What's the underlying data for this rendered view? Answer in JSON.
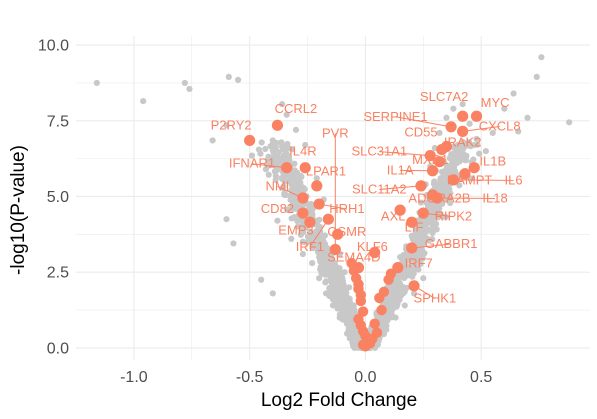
{
  "chart_data": {
    "type": "scatter",
    "title": "",
    "xlabel": "Log2 Fold Change",
    "ylabel": "-log10(P-value)",
    "xlim": [
      -1.25,
      0.97
    ],
    "ylim": [
      -0.4,
      10.3
    ],
    "x_ticks": [
      -1.0,
      -0.5,
      0.0,
      0.5
    ],
    "x_tick_labels": [
      "-1.0",
      "-0.5",
      "0.0",
      "0.5"
    ],
    "y_ticks": [
      0.0,
      2.5,
      5.0,
      7.5,
      10.0
    ],
    "y_tick_labels": [
      "0.0",
      "2.5",
      "5.0",
      "7.5",
      "10.0"
    ],
    "grid": true,
    "legend": "none",
    "colors": {
      "background_gene": "#c8c8c8",
      "highlighted_gene": "#fa8161",
      "grid": "#ebebeb"
    },
    "background_points": [
      [
        -1.16,
        8.75
      ],
      [
        -0.96,
        8.15
      ],
      [
        -0.78,
        8.75
      ],
      [
        -0.76,
        8.55
      ],
      [
        -0.59,
        8.95
      ],
      [
        -0.55,
        8.85
      ],
      [
        -0.6,
        7.35
      ],
      [
        -0.66,
        6.85
      ],
      [
        -0.46,
        6.55
      ],
      [
        -0.6,
        4.25
      ],
      [
        -0.57,
        3.45
      ],
      [
        -0.49,
        6.35
      ],
      [
        -0.43,
        5.9
      ],
      [
        -0.4,
        6.85
      ],
      [
        -0.36,
        8.05
      ],
      [
        -0.34,
        7.7
      ],
      [
        -0.33,
        6.3
      ],
      [
        -0.31,
        5.8
      ],
      [
        -0.29,
        5.3
      ],
      [
        -0.28,
        4.7
      ],
      [
        -0.35,
        5.1
      ],
      [
        -0.25,
        4.4
      ],
      [
        -0.24,
        3.8
      ],
      [
        -0.22,
        3.4
      ],
      [
        -0.2,
        3.0
      ],
      [
        -0.19,
        2.6
      ],
      [
        -0.17,
        2.2
      ],
      [
        -0.15,
        1.9
      ],
      [
        -0.14,
        1.6
      ],
      [
        -0.12,
        1.3
      ],
      [
        -0.1,
        1.0
      ],
      [
        -0.08,
        0.8
      ],
      [
        -0.06,
        0.55
      ],
      [
        -0.04,
        0.35
      ],
      [
        -0.02,
        0.15
      ],
      [
        -0.38,
        4.2
      ],
      [
        -0.32,
        3.6
      ],
      [
        -0.27,
        3.1
      ],
      [
        -0.45,
        2.25
      ],
      [
        -0.4,
        1.8
      ],
      [
        -0.3,
        7.2
      ],
      [
        -0.26,
        6.7
      ],
      [
        -0.21,
        5.6
      ],
      [
        -0.18,
        4.9
      ],
      [
        -0.16,
        4.3
      ],
      [
        -0.13,
        3.7
      ],
      [
        -0.11,
        3.1
      ],
      [
        -0.09,
        2.5
      ],
      [
        -0.07,
        2.0
      ],
      [
        -0.05,
        1.4
      ],
      [
        -0.23,
        2.8
      ],
      [
        -0.2,
        2.3
      ],
      [
        -0.17,
        1.8
      ],
      [
        -0.14,
        1.4
      ],
      [
        -0.11,
        1.1
      ],
      [
        0.02,
        0.2
      ],
      [
        0.04,
        0.4
      ],
      [
        0.06,
        0.7
      ],
      [
        0.08,
        1.0
      ],
      [
        0.1,
        1.4
      ],
      [
        0.12,
        1.8
      ],
      [
        0.14,
        2.2
      ],
      [
        0.16,
        2.7
      ],
      [
        0.18,
        3.2
      ],
      [
        0.2,
        3.7
      ],
      [
        0.22,
        4.2
      ],
      [
        0.24,
        4.8
      ],
      [
        0.26,
        5.4
      ],
      [
        0.28,
        6.0
      ],
      [
        0.3,
        6.6
      ],
      [
        0.32,
        7.1
      ],
      [
        0.35,
        7.6
      ],
      [
        0.38,
        7.9
      ],
      [
        0.42,
        8.05
      ],
      [
        0.45,
        7.4
      ],
      [
        0.48,
        6.9
      ],
      [
        0.52,
        6.5
      ],
      [
        0.55,
        7.1
      ],
      [
        0.6,
        7.9
      ],
      [
        0.64,
        8.4
      ],
      [
        0.7,
        7.6
      ],
      [
        0.76,
        9.6
      ],
      [
        0.74,
        8.95
      ],
      [
        0.88,
        7.45
      ],
      [
        0.66,
        7.15
      ],
      [
        0.15,
        3.0
      ],
      [
        0.19,
        2.6
      ],
      [
        0.23,
        3.3
      ],
      [
        0.27,
        3.9
      ],
      [
        0.31,
        4.6
      ],
      [
        0.34,
        5.2
      ],
      [
        0.37,
        5.8
      ],
      [
        0.4,
        6.4
      ],
      [
        0.43,
        6.2
      ],
      [
        0.46,
        5.6
      ],
      [
        0.25,
        2.3
      ],
      [
        0.21,
        1.8
      ],
      [
        0.17,
        1.4
      ],
      [
        0.13,
        1.0
      ],
      [
        0.09,
        0.6
      ]
    ],
    "highlighted_points": [
      {
        "label": "CCRL2",
        "x": -0.38,
        "y": 7.35
      },
      {
        "label": "P2RY2",
        "x": -0.5,
        "y": 6.85
      },
      {
        "label": "IFNAR1",
        "x": -0.34,
        "y": 5.95
      },
      {
        "label": "IL4R",
        "x": -0.26,
        "y": 5.95
      },
      {
        "label": "LPAR1",
        "x": -0.21,
        "y": 5.35
      },
      {
        "label": "NMI",
        "x": -0.27,
        "y": 4.95
      },
      {
        "label": "CD82",
        "x": -0.27,
        "y": 4.45
      },
      {
        "label": "HRH1",
        "x": -0.2,
        "y": 4.75
      },
      {
        "label": "EMP3",
        "x": -0.24,
        "y": 4.15
      },
      {
        "label": "IRF1",
        "x": -0.16,
        "y": 4.25
      },
      {
        "label": "OSMR",
        "x": -0.12,
        "y": 3.75
      },
      {
        "label": "PVR",
        "x": -0.13,
        "y": 3.25
      },
      {
        "label": "SEMA4D",
        "x": -0.03,
        "y": 2.65
      },
      {
        "label": "KLF6",
        "x": 0.04,
        "y": 3.15
      },
      {
        "label": "SLC7A2",
        "x": 0.42,
        "y": 7.65
      },
      {
        "label": "MYC",
        "x": 0.48,
        "y": 7.65
      },
      {
        "label": "SERPINE1",
        "x": 0.37,
        "y": 7.3
      },
      {
        "label": "CXCL8",
        "x": 0.42,
        "y": 7.15
      },
      {
        "label": "CD55",
        "x": 0.33,
        "y": 6.55
      },
      {
        "label": "IRAK2",
        "x": 0.35,
        "y": 6.65
      },
      {
        "label": "SLC31A1",
        "x": 0.28,
        "y": 6.35
      },
      {
        "label": "MXD1",
        "x": 0.32,
        "y": 6.15
      },
      {
        "label": "IL1B",
        "x": 0.47,
        "y": 5.95
      },
      {
        "label": "IL1A",
        "x": 0.29,
        "y": 5.85
      },
      {
        "label": "NAMPT",
        "x": 0.43,
        "y": 5.75
      },
      {
        "label": "IL6",
        "x": 0.38,
        "y": 5.55
      },
      {
        "label": "SLC11A2",
        "x": 0.24,
        "y": 5.35
      },
      {
        "label": "ADORA2B",
        "x": 0.29,
        "y": 5.05
      },
      {
        "label": "IL18",
        "x": 0.31,
        "y": 4.95
      },
      {
        "label": "AXL",
        "x": 0.15,
        "y": 4.55
      },
      {
        "label": "RIPK2",
        "x": 0.25,
        "y": 4.45
      },
      {
        "label": "LIF",
        "x": 0.2,
        "y": 4.15
      },
      {
        "label": "GABBR1",
        "x": 0.2,
        "y": 3.3
      },
      {
        "label": "IRF7",
        "x": 0.14,
        "y": 2.65
      },
      {
        "label": "SPHK1",
        "x": 0.21,
        "y": 2.05
      }
    ],
    "cluster_points": [
      [
        -0.05,
        2.55
      ],
      [
        -0.04,
        2.3
      ],
      [
        -0.03,
        2.1
      ],
      [
        -0.03,
        1.95
      ],
      [
        -0.02,
        1.75
      ],
      [
        -0.02,
        1.55
      ],
      [
        -0.01,
        1.2
      ],
      [
        -0.03,
        0.95
      ],
      [
        -0.02,
        0.75
      ],
      [
        -0.01,
        0.55
      ],
      [
        0.0,
        0.4
      ],
      [
        0.01,
        0.25
      ],
      [
        0.02,
        0.15
      ],
      [
        -0.01,
        0.1
      ],
      [
        0.0,
        0.05
      ],
      [
        0.03,
        0.3
      ],
      [
        0.05,
        0.5
      ],
      [
        0.07,
        1.25
      ],
      [
        0.1,
        2.25
      ],
      [
        0.11,
        2.45
      ],
      [
        0.08,
        1.85
      ],
      [
        0.06,
        1.65
      ],
      [
        -0.06,
        2.8
      ],
      [
        0.04,
        0.8
      ]
    ],
    "annotations": [
      {
        "label": "CCRL2",
        "ax": -0.3,
        "ay": 7.75,
        "anchor": "middle"
      },
      {
        "label": "P2RY2",
        "ax": -0.58,
        "ay": 7.22,
        "anchor": "middle"
      },
      {
        "label": "IFNAR1",
        "ax": -0.49,
        "ay": 5.95,
        "anchor": "middle"
      },
      {
        "label": "IL4R",
        "ax": -0.27,
        "ay": 6.35,
        "anchor": "middle"
      },
      {
        "label": "LPAR1",
        "ax": -0.17,
        "ay": 5.7,
        "anchor": "middle"
      },
      {
        "label": "NMI",
        "ax": -0.38,
        "ay": 5.2,
        "anchor": "middle"
      },
      {
        "label": "CD82",
        "ax": -0.38,
        "ay": 4.45,
        "anchor": "middle"
      },
      {
        "label": "HRH1",
        "ax": -0.08,
        "ay": 4.45,
        "anchor": "middle"
      },
      {
        "label": "EMP3",
        "ax": -0.3,
        "ay": 3.75,
        "anchor": "middle"
      },
      {
        "label": "IRF1",
        "ax": -0.24,
        "ay": 3.2,
        "anchor": "middle"
      },
      {
        "label": "OSMR",
        "ax": -0.08,
        "ay": 3.7,
        "anchor": "middle"
      },
      {
        "label": "PVR",
        "ax": -0.13,
        "ay": 6.95,
        "anchor": "middle"
      },
      {
        "label": "SEMA4D",
        "ax": -0.05,
        "ay": 2.85,
        "anchor": "middle"
      },
      {
        "label": "KLF6",
        "ax": 0.03,
        "ay": 3.2,
        "anchor": "middle"
      },
      {
        "label": "SLC7A2",
        "ax": 0.34,
        "ay": 8.15,
        "anchor": "middle"
      },
      {
        "label": "MYC",
        "ax": 0.56,
        "ay": 7.95,
        "anchor": "middle"
      },
      {
        "label": "SERPINE1",
        "ax": 0.13,
        "ay": 7.5,
        "anchor": "middle"
      },
      {
        "label": "CXCL8",
        "ax": 0.58,
        "ay": 7.18,
        "anchor": "middle"
      },
      {
        "label": "CD55",
        "ax": 0.24,
        "ay": 6.98,
        "anchor": "middle"
      },
      {
        "label": "IRAK2",
        "ax": 0.42,
        "ay": 6.65,
        "anchor": "middle"
      },
      {
        "label": "SLC31A1",
        "ax": 0.06,
        "ay": 6.35,
        "anchor": "middle"
      },
      {
        "label": "MXD1",
        "ax": 0.28,
        "ay": 6.08,
        "anchor": "middle"
      },
      {
        "label": "IL1B",
        "ax": 0.55,
        "ay": 6.03,
        "anchor": "middle"
      },
      {
        "label": "IL1A",
        "ax": 0.15,
        "ay": 5.73,
        "anchor": "middle"
      },
      {
        "label": "NAMPT",
        "ax": 0.45,
        "ay": 5.4,
        "anchor": "middle"
      },
      {
        "label": "IL6",
        "ax": 0.64,
        "ay": 5.4,
        "anchor": "middle"
      },
      {
        "label": "SLC11A2",
        "ax": 0.06,
        "ay": 5.1,
        "anchor": "middle"
      },
      {
        "label": "ADORA2B",
        "ax": 0.32,
        "ay": 4.8,
        "anchor": "middle"
      },
      {
        "label": "IL18",
        "ax": 0.56,
        "ay": 4.8,
        "anchor": "middle"
      },
      {
        "label": "AXL",
        "ax": 0.12,
        "ay": 4.2,
        "anchor": "middle"
      },
      {
        "label": "RIPK2",
        "ax": 0.38,
        "ay": 4.2,
        "anchor": "middle"
      },
      {
        "label": "LIF",
        "ax": 0.21,
        "ay": 3.85,
        "anchor": "middle"
      },
      {
        "label": "GABBR1",
        "ax": 0.37,
        "ay": 3.3,
        "anchor": "middle"
      },
      {
        "label": "IRF7",
        "ax": 0.23,
        "ay": 2.65,
        "anchor": "middle"
      },
      {
        "label": "SPHK1",
        "ax": 0.3,
        "ay": 1.5,
        "anchor": "middle"
      }
    ]
  }
}
